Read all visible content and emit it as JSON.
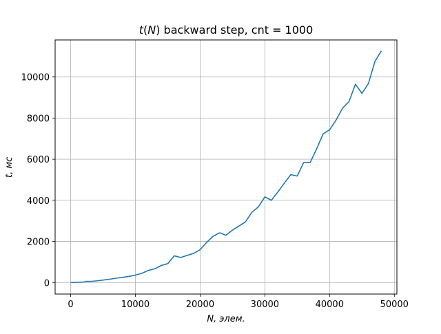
{
  "chart_data": {
    "type": "line",
    "title": "t(N) backward step, cnt = 1000",
    "xlabel": "N, элем.",
    "ylabel": "t, мс",
    "xlim": [
      -2400,
      50400
    ],
    "ylim": [
      -560,
      11800
    ],
    "grid": true,
    "line_color": "#1f77b4",
    "x_ticks": [
      0,
      10000,
      20000,
      30000,
      40000,
      50000
    ],
    "x_tick_labels": [
      "0",
      "10000",
      "20000",
      "30000",
      "40000",
      "50000"
    ],
    "y_ticks": [
      0,
      2000,
      4000,
      6000,
      8000,
      10000
    ],
    "y_tick_labels": [
      "0",
      "2000",
      "4000",
      "6000",
      "8000",
      "10000"
    ],
    "series": [
      {
        "x": [
          0,
          1000,
          2000,
          2500,
          3000,
          4000,
          5000,
          6000,
          7000,
          8000,
          9000,
          10000,
          11000,
          12000,
          13000,
          14000,
          15000,
          16000,
          17000,
          18000,
          19000,
          20000,
          21000,
          22000,
          23000,
          24000,
          25000,
          26000,
          27000,
          28000,
          29000,
          30000,
          31000,
          32000,
          33000,
          34000,
          35000,
          36000,
          37000,
          38000,
          39000,
          40000,
          41000,
          42000,
          43000,
          44000,
          45000,
          46000,
          47000,
          48000
        ],
        "y": [
          0,
          10,
          25,
          60,
          55,
          80,
          120,
          160,
          210,
          250,
          300,
          360,
          450,
          590,
          670,
          830,
          920,
          1300,
          1220,
          1320,
          1420,
          1600,
          1950,
          2250,
          2420,
          2300,
          2550,
          2750,
          2950,
          3420,
          3680,
          4170,
          4000,
          4400,
          4830,
          5250,
          5180,
          5840,
          5840,
          6500,
          7230,
          7430,
          7900,
          8480,
          8800,
          9650,
          9200,
          9680,
          10750,
          11270
        ]
      }
    ]
  }
}
